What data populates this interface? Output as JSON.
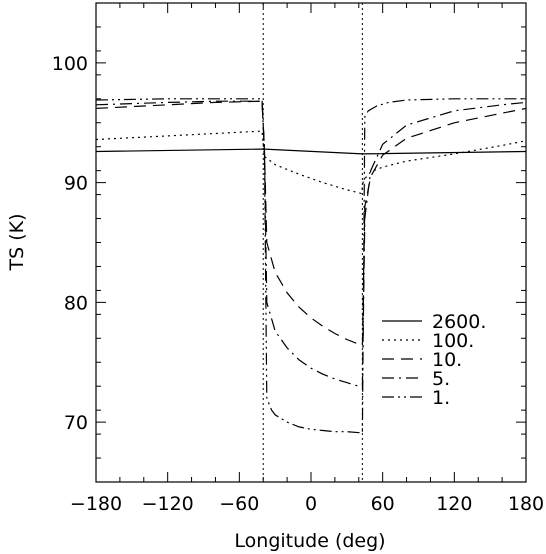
{
  "chart_data": {
    "type": "line",
    "title": "",
    "xlabel": "Longitude (deg)",
    "ylabel": "TS (K)",
    "xlim": [
      -180,
      180
    ],
    "ylim": [
      65,
      105
    ],
    "xticks": [
      -180,
      -120,
      -60,
      0,
      60,
      120,
      180
    ],
    "xtick_labels": [
      "−180",
      "−120",
      "−60",
      "0",
      "60",
      "120",
      "180"
    ],
    "yticks": [
      70,
      80,
      90,
      100
    ],
    "ytick_labels": [
      "70",
      "80",
      "90",
      "100"
    ],
    "grid": false,
    "legend_position": "bottom-right",
    "vertical_reference_lines": [
      -40,
      43
    ],
    "series": [
      {
        "name": "2600.",
        "dash": "solid",
        "x": [
          -180,
          -41,
          -39,
          43,
          180
        ],
        "y": [
          92.6,
          92.8,
          92.8,
          92.4,
          92.6
        ]
      },
      {
        "name": "100.",
        "dash": "dotted",
        "x": [
          -180,
          -120,
          -80,
          -41,
          -39,
          -30,
          -10,
          10,
          30,
          42,
          44,
          50,
          60,
          80,
          120,
          160,
          180
        ],
        "y": [
          93.6,
          93.9,
          94.1,
          94.3,
          92.2,
          91.5,
          90.7,
          90.0,
          89.4,
          89.1,
          90.2,
          90.9,
          91.3,
          91.8,
          92.4,
          93.1,
          93.5
        ]
      },
      {
        "name": "10.",
        "dash": "dashed",
        "x": [
          -180,
          -120,
          -80,
          -41,
          -39,
          -37,
          -30,
          -20,
          -10,
          0,
          10,
          20,
          30,
          43,
          45,
          50,
          60,
          80,
          120,
          160,
          180
        ],
        "y": [
          96.2,
          96.5,
          96.7,
          96.8,
          92.8,
          85.0,
          82.5,
          80.8,
          79.6,
          78.7,
          78.0,
          77.4,
          76.9,
          76.4,
          88.0,
          90.5,
          92.3,
          93.7,
          95.0,
          95.8,
          96.2
        ]
      },
      {
        "name": "5.",
        "dash": "dash-dot",
        "x": [
          -180,
          -120,
          -80,
          -41,
          -39,
          -37,
          -30,
          -20,
          -10,
          0,
          10,
          20,
          30,
          43,
          45,
          50,
          60,
          80,
          120,
          160,
          180
        ],
        "y": [
          96.5,
          96.7,
          96.8,
          96.8,
          92.8,
          80.0,
          77.6,
          76.2,
          75.2,
          74.5,
          74.0,
          73.6,
          73.3,
          72.9,
          87.0,
          91.0,
          93.2,
          94.8,
          96.0,
          96.5,
          96.7
        ]
      },
      {
        "name": "1.",
        "dash": "dash-dot-dot",
        "x": [
          -180,
          -120,
          -80,
          -41,
          -39,
          -37,
          -33,
          -30,
          -20,
          -10,
          0,
          10,
          20,
          30,
          43,
          45,
          48,
          55,
          65,
          80,
          120,
          160,
          180
        ],
        "y": [
          96.9,
          97.0,
          97.0,
          97.0,
          92.9,
          72.0,
          71.0,
          70.6,
          70.0,
          69.6,
          69.4,
          69.3,
          69.2,
          69.2,
          69.1,
          95.5,
          96.0,
          96.4,
          96.7,
          96.9,
          97.0,
          97.0,
          97.0
        ]
      }
    ]
  }
}
